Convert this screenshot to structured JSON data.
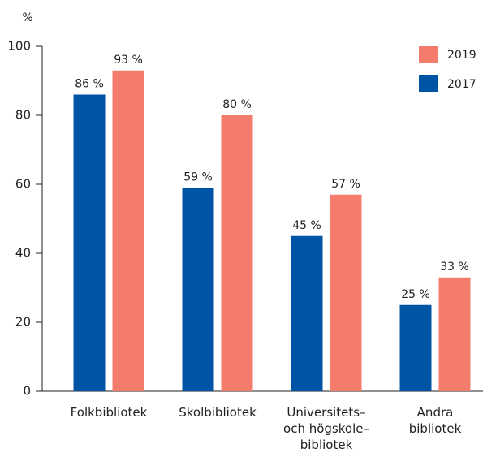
{
  "chart_data": {
    "type": "bar",
    "y_label": "%",
    "categories": [
      "Folkbibliotek",
      "Skolbibliotek",
      "Universitets–\noch högskole–\nbibliotek",
      "Andra\nbibliotek"
    ],
    "series": [
      {
        "name": "2017",
        "color": "#0054a6",
        "values": [
          86,
          59,
          45,
          25
        ],
        "value_labels": [
          "86 %",
          "59 %",
          "45 %",
          "25 %"
        ]
      },
      {
        "name": "2019",
        "color": "#f47c6c",
        "values": [
          93,
          80,
          57,
          33
        ],
        "value_labels": [
          "93 %",
          "80 %",
          "57 %",
          "33 %"
        ]
      }
    ],
    "ylim": [
      0,
      100
    ],
    "yticks": [
      0,
      20,
      40,
      60,
      80,
      100
    ],
    "legend": "upper right"
  }
}
